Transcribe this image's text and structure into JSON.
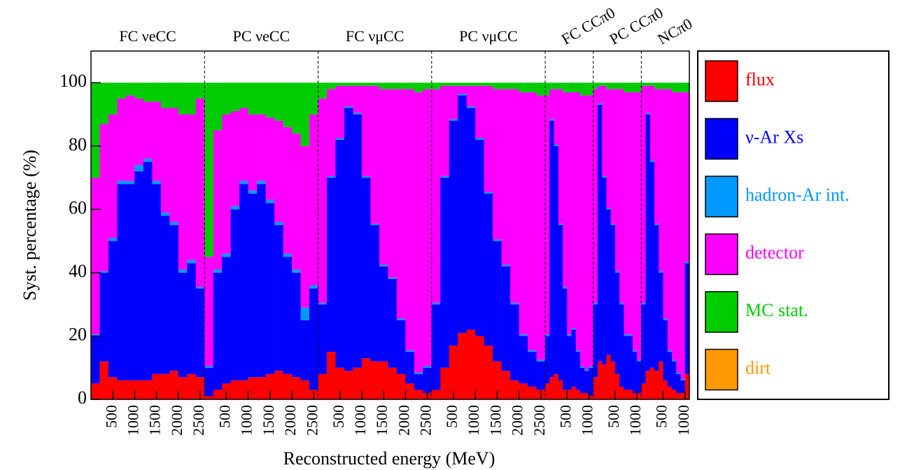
{
  "chart_data": {
    "type": "histogram",
    "stacked": true,
    "ylabel": "Syst. percentage (%)",
    "xlabel": "Reconstructed energy (MeV)",
    "ylim": [
      0,
      110
    ],
    "yticks": [
      0,
      20,
      40,
      60,
      80,
      100
    ],
    "panels": [
      {
        "label": "FC νeCC",
        "xlim": [
          0,
          2600
        ],
        "xticks": [
          500,
          1000,
          1500,
          2000,
          2500
        ]
      },
      {
        "label": "PC νeCC",
        "xlim": [
          0,
          2600
        ],
        "xticks": [
          500,
          1000,
          1500,
          2000,
          2500
        ]
      },
      {
        "label": "FC νμCC",
        "xlim": [
          0,
          2600
        ],
        "xticks": [
          500,
          1000,
          1500,
          2000,
          2500
        ]
      },
      {
        "label": "PC νμCC",
        "xlim": [
          0,
          2600
        ],
        "xticks": [
          500,
          1000,
          1500,
          2000,
          2500
        ]
      },
      {
        "label": "FC CCπ0",
        "xlim": [
          0,
          1100
        ],
        "xticks": [
          500,
          1000
        ]
      },
      {
        "label": "PC CCπ0",
        "xlim": [
          0,
          1100
        ],
        "xticks": [
          500,
          1000
        ]
      },
      {
        "label": "NCπ0",
        "xlim": [
          0,
          1100
        ],
        "xticks": [
          500,
          1000
        ]
      }
    ],
    "series": [
      {
        "name": "flux",
        "color": "#ff0000",
        "values": [
          [
            5,
            12,
            7,
            6,
            6,
            6,
            6,
            8,
            8,
            9,
            7,
            8,
            7
          ],
          [
            1,
            3,
            5,
            6,
            6,
            7,
            7,
            8,
            9,
            8,
            7,
            6,
            3
          ],
          [
            8,
            15,
            10,
            9,
            10,
            13,
            12,
            12,
            10,
            8,
            5,
            3,
            2
          ],
          [
            3,
            10,
            17,
            21,
            22,
            20,
            17,
            12,
            9,
            6,
            5,
            4,
            3
          ],
          [
            5,
            7,
            8,
            6,
            3,
            3,
            4,
            3,
            2,
            2,
            1
          ],
          [
            7,
            12,
            11,
            14,
            12,
            8,
            4,
            3,
            3,
            2,
            2
          ],
          [
            5,
            9,
            10,
            9,
            12,
            6,
            4,
            3,
            2,
            2,
            8
          ]
        ]
      },
      {
        "name": "ν-Ar Xs",
        "color": "#0000ff",
        "values": [
          [
            15,
            28,
            43,
            62,
            62,
            66,
            69,
            60,
            50,
            46,
            33,
            35,
            28
          ],
          [
            9,
            37,
            40,
            54,
            62,
            58,
            61,
            54,
            46,
            37,
            33,
            19,
            32
          ],
          [
            22,
            55,
            72,
            83,
            80,
            57,
            43,
            30,
            28,
            17,
            10,
            5,
            8
          ],
          [
            27,
            60,
            71,
            75,
            70,
            62,
            48,
            38,
            33,
            24,
            15,
            11,
            9
          ],
          [
            15,
            81,
            72,
            49,
            32,
            17,
            18,
            12,
            8,
            7,
            9
          ],
          [
            23,
            81,
            59,
            46,
            43,
            32,
            26,
            17,
            17,
            13,
            10
          ],
          [
            25,
            81,
            65,
            46,
            28,
            19,
            11,
            9,
            6,
            4,
            35
          ]
        ]
      },
      {
        "name": "hadron-Ar int.",
        "color": "#0099ff",
        "values": [
          [
            0.5,
            0.5,
            1,
            1,
            1,
            2,
            1,
            1,
            1,
            1,
            1,
            1,
            0.5
          ],
          [
            0.5,
            1,
            1,
            1,
            1,
            1,
            1,
            1,
            1,
            1,
            1,
            4,
            1
          ],
          [
            0.5,
            0.5,
            0.5,
            0.5,
            0.5,
            0.5,
            0.5,
            0.5,
            0.5,
            0.5,
            0.5,
            0.5,
            0.5
          ],
          [
            0.5,
            0.5,
            0.5,
            0.5,
            0.5,
            0.5,
            0.5,
            0.5,
            0.5,
            0.5,
            0.5,
            0.5,
            0.5
          ],
          [
            0.5,
            0.5,
            0.5,
            0.5,
            0.5,
            0.5,
            0.5,
            0.5,
            0.5,
            0.5,
            0.5
          ],
          [
            0.5,
            0.5,
            0.5,
            0.5,
            0.5,
            0.5,
            0.5,
            0.5,
            0.5,
            0.5,
            0.5
          ],
          [
            0.5,
            0.5,
            0.5,
            0.5,
            0.5,
            0.5,
            0.5,
            0.5,
            0.5,
            0.5,
            0.5
          ]
        ]
      },
      {
        "name": "detector",
        "color": "#ff00ff",
        "values": [
          [
            49.5,
            46.5,
            39,
            26,
            27,
            21,
            18,
            25,
            33,
            36,
            49,
            46,
            59.5
          ],
          [
            34.5,
            44,
            44,
            30,
            23,
            24,
            21,
            26,
            32,
            40,
            43,
            51,
            54
          ],
          [
            64.5,
            27.5,
            16.5,
            6.5,
            8.5,
            28.5,
            43.5,
            55.5,
            59.5,
            72.5,
            82.5,
            88.5,
            87.5
          ],
          [
            67.5,
            28.5,
            10.5,
            2.5,
            6.5,
            16.5,
            33.5,
            47.5,
            55.5,
            67.5,
            76.5,
            81.5,
            83.5
          ],
          [
            75.5,
            9.5,
            17.5,
            42.5,
            61.5,
            76.5,
            74.5,
            81.5,
            85.5,
            86.5,
            85.5
          ],
          [
            67.5,
            5.5,
            28.5,
            37.5,
            42.5,
            57.5,
            67.5,
            76.5,
            76.5,
            81.5,
            84.5
          ],
          [
            68.5,
            8.5,
            23.5,
            42.5,
            57.5,
            72.5,
            82.5,
            84.5,
            88.5,
            90.5,
            53.5
          ]
        ]
      },
      {
        "name": "MC stat.",
        "color": "#00cc00",
        "values": [
          [
            30,
            13,
            10,
            5,
            4,
            5,
            6,
            6,
            8,
            8,
            10,
            10,
            5
          ],
          [
            55,
            15,
            10,
            9,
            8,
            10,
            10,
            11,
            12,
            14,
            16,
            20,
            10
          ],
          [
            5,
            2,
            1,
            1,
            1,
            1,
            1,
            2,
            2,
            2,
            2,
            3,
            2
          ],
          [
            2,
            1,
            1,
            1,
            1,
            1,
            1,
            2,
            2,
            2,
            3,
            3,
            4
          ],
          [
            4,
            2,
            2,
            2,
            3,
            3,
            3,
            3,
            4,
            4,
            4
          ],
          [
            2,
            1,
            1,
            2,
            2,
            2,
            2,
            3,
            3,
            3,
            3
          ],
          [
            1,
            1,
            1,
            2,
            2,
            2,
            2,
            3,
            3,
            3,
            3
          ]
        ]
      },
      {
        "name": "dirt",
        "color": "#ff9900",
        "values": [
          [
            0,
            0,
            0,
            0,
            0,
            0,
            0,
            0,
            0,
            0,
            0,
            0,
            0
          ],
          [
            0,
            0,
            0,
            0,
            0,
            0,
            0,
            0,
            0,
            0,
            0,
            0,
            0
          ],
          [
            0,
            0,
            0,
            0,
            0,
            0,
            0,
            0,
            0,
            0,
            0,
            0,
            0
          ],
          [
            0,
            0,
            0,
            0,
            0,
            0,
            0,
            0,
            0,
            0,
            0,
            0,
            0
          ],
          [
            0,
            0,
            0,
            0,
            0,
            0,
            0,
            0,
            0,
            0,
            0
          ],
          [
            0,
            0,
            0,
            0,
            0,
            0,
            0,
            0,
            0,
            0,
            0
          ],
          [
            0,
            0,
            0,
            0,
            0,
            0,
            0,
            0,
            0,
            0,
            0
          ]
        ]
      }
    ]
  }
}
